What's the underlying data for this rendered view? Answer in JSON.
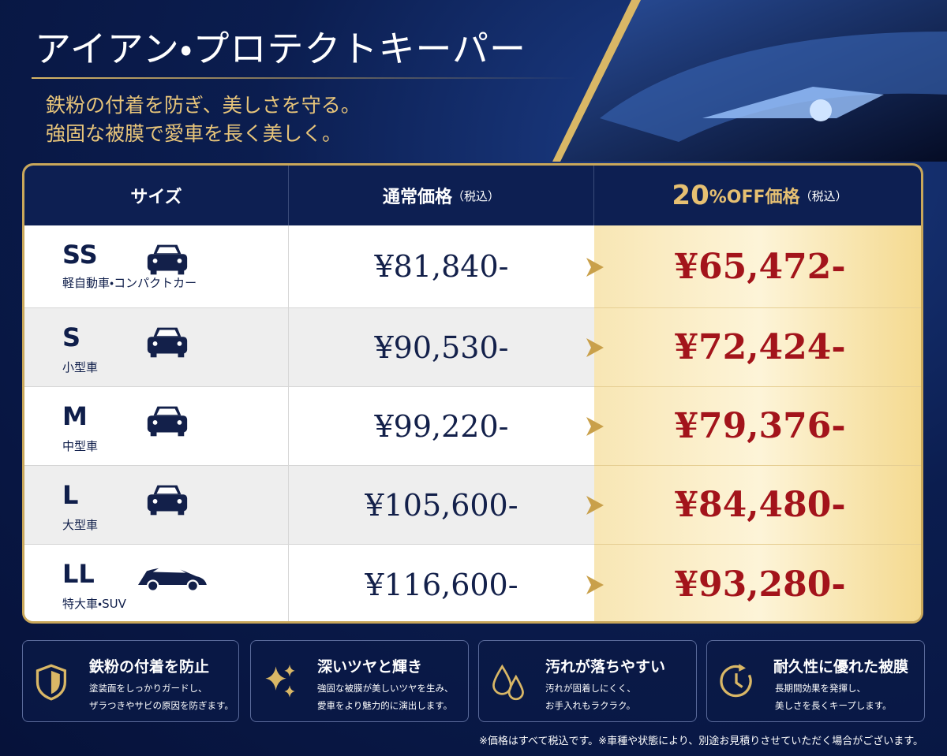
{
  "header": {
    "title": "アイアン・プロテクトキーパー",
    "subtitle": [
      "鉄粉の付着を防ぎ、美しさを守る。",
      "強固な被膜で愛車を長く美しく。"
    ]
  },
  "table": {
    "headers": [
      {
        "main": "サイズ"
      },
      {
        "main": "通常価格",
        "note": "（税込）"
      },
      {
        "lead": "20",
        "main": "%OFF価格",
        "note": "（税込）"
      }
    ],
    "rows": [
      {
        "size": "SS",
        "desc": "軽自動車・コンパクトカー",
        "regular": "¥81,840-",
        "discount": "¥65,472-"
      },
      {
        "size": "S",
        "desc": "小型車",
        "regular": "¥90,530-",
        "discount": "¥72,424-"
      },
      {
        "size": "M",
        "desc": "中型車",
        "regular": "¥99,220-",
        "discount": "¥79,376-"
      },
      {
        "size": "L",
        "desc": "大型車",
        "regular": "¥105,600-",
        "discount": "¥84,480-"
      },
      {
        "size": "LL",
        "desc": "特大車・SUV",
        "regular": "¥116,600-",
        "discount": "¥93,280-"
      }
    ]
  },
  "features": [
    {
      "title": "鉄粉の付着を防止",
      "lines": [
        "塗装面をしっかりガードし、",
        "ザラつきやサビの原因を防ぎます。"
      ]
    },
    {
      "title": "深いツヤと輝き",
      "lines": [
        "強固な被膜が美しいツヤを生み、",
        "愛車をより魅力的に演出します。"
      ]
    },
    {
      "title": "汚れが落ちやすい",
      "lines": [
        "汚れが固着しにくく、",
        "お手入れもラクラク。"
      ]
    },
    {
      "title": "耐久性に優れた被膜",
      "lines": [
        "長期間効果を発揮し、",
        "美しさを長くキープします。"
      ]
    }
  ],
  "footnote": "※価格はすべて税込です。※車種や状態により、別途お見積りさせていただく場合がございます。"
}
